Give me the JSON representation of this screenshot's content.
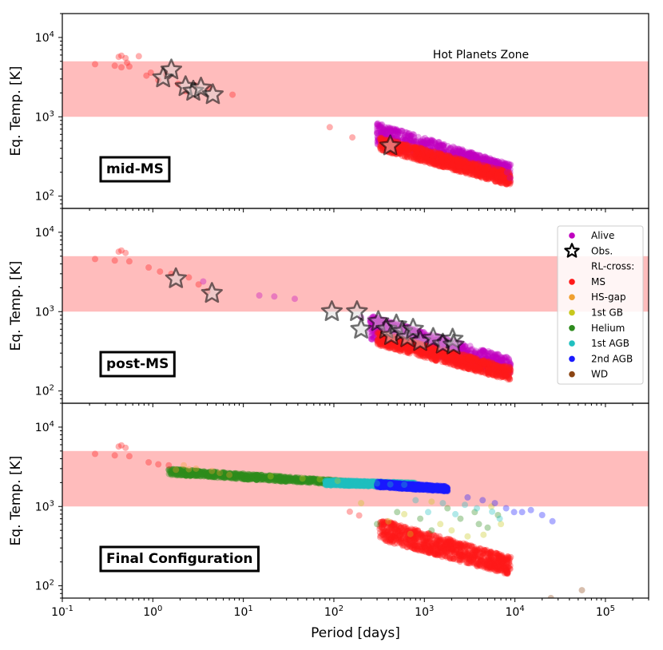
{
  "chart_data": {
    "type": "scatter",
    "xlabel": "Period [days]",
    "ylabel": "Eq. Temp. [K]",
    "xscale": "log",
    "yscale": "log",
    "xlim": [
      0.1,
      300000
    ],
    "ylim": [
      70,
      20000
    ],
    "xticks": [
      {
        "value": 0.1,
        "label": "10^-1"
      },
      {
        "value": 1,
        "label": "10^0"
      },
      {
        "value": 10,
        "label": "10^1"
      },
      {
        "value": 100,
        "label": "10^2"
      },
      {
        "value": 1000,
        "label": "10^3"
      },
      {
        "value": 10000,
        "label": "10^4"
      },
      {
        "value": 100000,
        "label": "10^5"
      }
    ],
    "yticks": [
      {
        "value": 100,
        "label": "10^2"
      },
      {
        "value": 1000,
        "label": "10^3"
      },
      {
        "value": 10000,
        "label": "10^4"
      }
    ],
    "hot_zone": {
      "label": "Hot Planets Zone",
      "ymin": 1000,
      "ymax": 5000,
      "color": "#ffbcbc"
    },
    "colors": {
      "Alive": "#bf00bf",
      "MS": "#ff1a1a",
      "HS-gap": "#f0a030",
      "1st GB": "#c8c81e",
      "Helium": "#2e8b1e",
      "1st AGB": "#20c0c0",
      "2nd AGB": "#1a1aff",
      "WD": "#8b4513",
      "Obs": "#000000"
    },
    "legend": {
      "placement": "right of middle panel",
      "entries": [
        {
          "label": "Alive",
          "marker": "dot",
          "color_key": "Alive"
        },
        {
          "label": "Obs.",
          "marker": "star",
          "color_key": "Obs"
        },
        {
          "label": "RL-cross:",
          "marker": "none"
        },
        {
          "label": "MS",
          "marker": "dot",
          "color_key": "MS"
        },
        {
          "label": "HS-gap",
          "marker": "dot",
          "color_key": "HS-gap"
        },
        {
          "label": "1st GB",
          "marker": "dot",
          "color_key": "1st GB"
        },
        {
          "label": "Helium",
          "marker": "dot",
          "color_key": "Helium"
        },
        {
          "label": "1st AGB",
          "marker": "dot",
          "color_key": "1st AGB"
        },
        {
          "label": "2nd AGB",
          "marker": "dot",
          "color_key": "2nd AGB"
        },
        {
          "label": "WD",
          "marker": "dot",
          "color_key": "WD"
        }
      ]
    },
    "panels": [
      {
        "label": "mid-MS",
        "zone_text": true,
        "series": [
          {
            "name": "MS",
            "color_key": "MS",
            "points": [
              [
                0.23,
                4600
              ],
              [
                0.38,
                4400
              ],
              [
                0.42,
                5700
              ],
              [
                0.45,
                5900
              ],
              [
                0.5,
                5500
              ],
              [
                0.45,
                4200
              ],
              [
                0.55,
                4300
              ],
              [
                0.7,
                5800
              ],
              [
                0.52,
                4800
              ],
              [
                0.85,
                3300
              ],
              [
                0.95,
                3600
              ],
              [
                1.15,
                2900
              ],
              [
                1.4,
                3400
              ],
              [
                1.9,
                2600
              ],
              [
                2.3,
                2100
              ],
              [
                2.9,
                2500
              ],
              [
                4.2,
                2300
              ],
              [
                7.6,
                1900
              ],
              [
                90,
                740
              ],
              [
                160,
                550
              ]
            ]
          },
          {
            "name": "Alive",
            "color_key": "Alive",
            "points": [
              [
                340,
                800
              ],
              [
                420,
                700
              ],
              [
                520,
                640
              ],
              [
                700,
                560
              ],
              [
                1000,
                470
              ],
              [
                1500,
                400
              ],
              [
                2200,
                340
              ],
              [
                3200,
                300
              ],
              [
                4500,
                270
              ],
              [
                6500,
                240
              ],
              [
                8200,
                200
              ],
              [
                8800,
                170
              ]
            ]
          }
        ],
        "bands": [
          {
            "color_key": "Alive",
            "x0": 300,
            "x1": 9000,
            "y0_hi": 850,
            "y1_hi": 250,
            "y0_lo": 450,
            "y1_lo": 150
          },
          {
            "color_key": "MS",
            "x0": 320,
            "x1": 9000,
            "y0_hi": 560,
            "y1_hi": 200,
            "y0_lo": 380,
            "y1_lo": 135
          }
        ],
        "stars": [
          [
            1.3,
            3100
          ],
          [
            1.6,
            3900
          ],
          [
            2.3,
            2400
          ],
          [
            2.8,
            2100
          ],
          [
            3.4,
            2300
          ],
          [
            4.6,
            1900
          ],
          [
            420,
            430
          ]
        ]
      },
      {
        "label": "post-MS",
        "zone_text": false,
        "series": [
          {
            "name": "MS",
            "color_key": "MS",
            "points": [
              [
                0.23,
                4600
              ],
              [
                0.38,
                4400
              ],
              [
                0.42,
                5700
              ],
              [
                0.45,
                5900
              ],
              [
                0.5,
                5500
              ],
              [
                0.55,
                4300
              ],
              [
                0.9,
                3600
              ],
              [
                1.2,
                3200
              ],
              [
                1.6,
                3000
              ],
              [
                2.5,
                2700
              ],
              [
                3.2,
                2200
              ],
              [
                4.0,
                1800
              ]
            ]
          },
          {
            "name": "Alive",
            "color_key": "Alive",
            "points": [
              [
                3.6,
                2400
              ],
              [
                15,
                1600
              ],
              [
                22,
                1550
              ],
              [
                37,
                1450
              ],
              [
                200,
                850
              ],
              [
                300,
                830
              ]
            ]
          }
        ],
        "bands": [
          {
            "color_key": "Alive",
            "x0": 250,
            "x1": 9000,
            "y0_hi": 900,
            "y1_hi": 260,
            "y0_lo": 450,
            "y1_lo": 150
          },
          {
            "color_key": "MS",
            "x0": 300,
            "x1": 9000,
            "y0_hi": 560,
            "y1_hi": 200,
            "y0_lo": 380,
            "y1_lo": 135
          }
        ],
        "stars": [
          [
            1.8,
            2600
          ],
          [
            4.5,
            1700
          ],
          [
            95,
            1000
          ],
          [
            180,
            1000
          ],
          [
            200,
            600
          ],
          [
            310,
            750
          ],
          [
            380,
            600
          ],
          [
            430,
            500
          ],
          [
            490,
            680
          ],
          [
            570,
            560
          ],
          [
            650,
            470
          ],
          [
            750,
            600
          ],
          [
            900,
            420
          ],
          [
            1250,
            460
          ],
          [
            1600,
            390
          ],
          [
            2050,
            450
          ],
          [
            2100,
            380
          ]
        ]
      },
      {
        "label": "Final Configuration",
        "zone_text": false,
        "series": [
          {
            "name": "MS",
            "color_key": "MS",
            "points": [
              [
                0.23,
                4600
              ],
              [
                0.38,
                4400
              ],
              [
                0.42,
                5700
              ],
              [
                0.45,
                5900
              ],
              [
                0.5,
                5500
              ],
              [
                0.55,
                4300
              ],
              [
                0.9,
                3600
              ],
              [
                1.15,
                3400
              ],
              [
                1.5,
                3300
              ],
              [
                150,
                860
              ],
              [
                190,
                770
              ]
            ]
          },
          {
            "name": "HS-gap",
            "color_key": "HS-gap",
            "points": [
              [
                1.8,
                2900
              ],
              [
                2.2,
                3300
              ],
              [
                3.0,
                3000
              ],
              [
                4.5,
                2800
              ],
              [
                7,
                2500
              ],
              [
                2.5,
                2950
              ],
              [
                5.5,
                2650
              ]
            ]
          },
          {
            "name": "1st GB",
            "color_key": "1st GB",
            "points": [
              [
                20,
                2400
              ],
              [
                45,
                2250
              ],
              [
                70,
                2200
              ],
              [
                110,
                2100
              ],
              [
                200,
                1100
              ],
              [
                400,
                650
              ],
              [
                600,
                800
              ],
              [
                1200,
                1150
              ],
              [
                2000,
                500
              ],
              [
                3000,
                420
              ],
              [
                4500,
                440
              ],
              [
                5500,
                1000
              ],
              [
                7000,
                600
              ],
              [
                700,
                450
              ],
              [
                1500,
                600
              ]
            ]
          },
          {
            "name": "Helium",
            "color_key": "Helium",
            "points": [
              [
                6,
                2700
              ],
              [
                10,
                2600
              ],
              [
                14,
                2500
              ],
              [
                25,
                2350
              ],
              [
                300,
                600
              ],
              [
                500,
                850
              ],
              [
                900,
                700
              ],
              [
                1800,
                950
              ],
              [
                2500,
                700
              ],
              [
                3600,
                850
              ],
              [
                5000,
                540
              ],
              [
                6500,
                780
              ],
              [
                1200,
                500
              ],
              [
                4000,
                600
              ]
            ]
          },
          {
            "name": "1st AGB",
            "color_key": "1st AGB",
            "points": [
              [
                300,
                1950
              ],
              [
                420,
                1900
              ],
              [
                600,
                1880
              ],
              [
                800,
                1200
              ],
              [
                1100,
                850
              ],
              [
                2200,
                800
              ],
              [
                2800,
                1050
              ],
              [
                3800,
                950
              ],
              [
                5600,
                860
              ],
              [
                6800,
                700
              ],
              [
                1600,
                1100
              ]
            ]
          },
          {
            "name": "2nd AGB",
            "color_key": "2nd AGB",
            "points": [
              [
                800,
                1750
              ],
              [
                1200,
                1700
              ],
              [
                1600,
                1650
              ],
              [
                3000,
                1300
              ],
              [
                4400,
                1200
              ],
              [
                6000,
                1100
              ],
              [
                8000,
                950
              ],
              [
                9800,
                850
              ],
              [
                12000,
                850
              ],
              [
                15000,
                900
              ],
              [
                26000,
                650
              ],
              [
                20000,
                780
              ]
            ]
          },
          {
            "name": "WD",
            "color_key": "WD",
            "points": [
              [
                25000,
                70
              ],
              [
                55000,
                88
              ]
            ]
          }
        ],
        "bands": [
          {
            "color_key": "Helium",
            "x0": 1.5,
            "x1": 150,
            "y0_hi": 3000,
            "y1_hi": 2100,
            "y0_lo": 2500,
            "y1_lo": 1850
          },
          {
            "color_key": "1st AGB",
            "x0": 80,
            "x1": 800,
            "y0_hi": 2150,
            "y1_hi": 2000,
            "y0_lo": 1850,
            "y1_lo": 1750
          },
          {
            "color_key": "2nd AGB",
            "x0": 300,
            "x1": 1800,
            "y0_hi": 2050,
            "y1_hi": 1800,
            "y0_lo": 1750,
            "y1_lo": 1550
          },
          {
            "color_key": "MS",
            "x0": 320,
            "x1": 9000,
            "y0_hi": 700,
            "y1_hi": 230,
            "y0_lo": 380,
            "y1_lo": 135
          }
        ],
        "stars": []
      }
    ]
  }
}
